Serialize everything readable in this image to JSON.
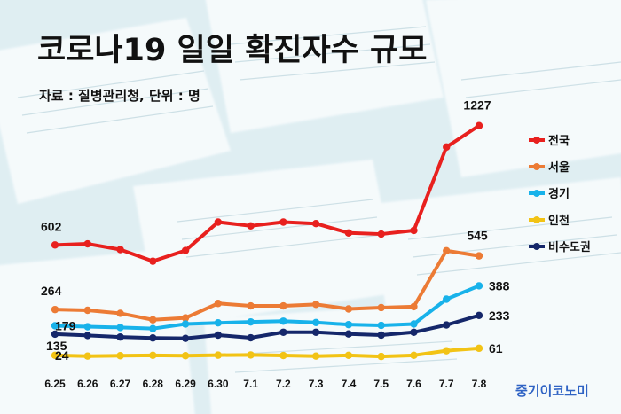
{
  "title": "코로나19 일일 확진자수 규모",
  "source": "자료 : 질병관리청, 단위 : 명",
  "brand": "중기이코노미",
  "colors": {
    "background": "#dfeef2",
    "mask": "#f7fbfc"
  },
  "chart_data": {
    "type": "line",
    "categories": [
      "6.25",
      "6.26",
      "6.27",
      "6.28",
      "6.29",
      "6.30",
      "7.1",
      "7.2",
      "7.3",
      "7.4",
      "7.5",
      "7.6",
      "7.7",
      "7.8"
    ],
    "ylim": [
      0,
      1300
    ],
    "grid": false,
    "legend_position": "right",
    "series": [
      {
        "name": "전국",
        "color": "#e8201e",
        "values": [
          602,
          608,
          578,
          517,
          573,
          722,
          702,
          722,
          714,
          665,
          659,
          678,
          1115,
          1227
        ],
        "labels": {
          "0": "602",
          "13": "1227"
        }
      },
      {
        "name": "서울",
        "color": "#ec7b35",
        "values": [
          264,
          260,
          244,
          210,
          220,
          296,
          283,
          283,
          291,
          267,
          274,
          279,
          572,
          545
        ],
        "labels": {
          "0": "264",
          "13": "545"
        }
      },
      {
        "name": "경기",
        "color": "#18b2ea",
        "values": [
          179,
          174,
          170,
          164,
          188,
          194,
          199,
          203,
          196,
          185,
          181,
          188,
          318,
          388
        ],
        "labels": {
          "0": "179",
          "13": "388"
        }
      },
      {
        "name": "인천",
        "color": "#f2c315",
        "values": [
          24,
          20,
          22,
          24,
          22,
          25,
          26,
          23,
          20,
          24,
          18,
          24,
          48,
          61
        ],
        "labels": {
          "0": "24",
          "13": "61"
        }
      },
      {
        "name": "비수도권",
        "color": "#15276a",
        "values": [
          135,
          128,
          120,
          115,
          113,
          130,
          116,
          145,
          145,
          136,
          130,
          145,
          183,
          233
        ],
        "labels": {
          "0": "135",
          "13": "233"
        }
      }
    ]
  }
}
